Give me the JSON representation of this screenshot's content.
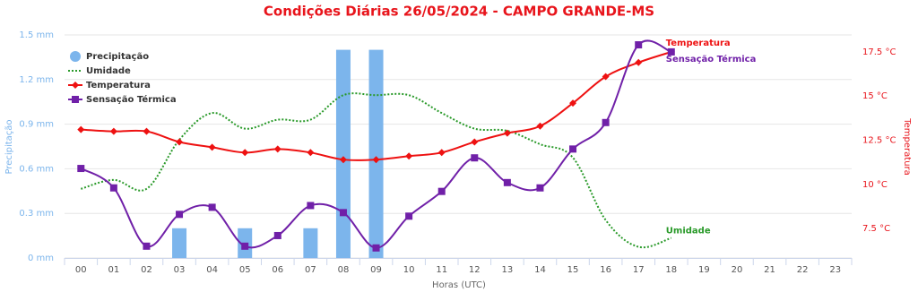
{
  "chart_data": {
    "type": "combo",
    "title": "Condições Diárias 26/05/2024 - CAMPO GRANDE-MS",
    "x_label": "Horas (UTC)",
    "y_label": "Precipitação",
    "y2_label": "Temperatura",
    "categories": [
      "00",
      "01",
      "02",
      "03",
      "04",
      "05",
      "06",
      "07",
      "08",
      "09",
      "10",
      "11",
      "12",
      "13",
      "14",
      "15",
      "16",
      "17",
      "18",
      "19",
      "20",
      "21",
      "22",
      "23"
    ],
    "ylim": [
      0,
      1.5
    ],
    "yticks": [
      {
        "value": 0,
        "label": "0 mm"
      },
      {
        "value": 0.3,
        "label": "0.3 mm"
      },
      {
        "value": 0.6,
        "label": "0.6 mm"
      },
      {
        "value": 0.9,
        "label": "0.9 mm"
      },
      {
        "value": 1.2,
        "label": "1.2 mm"
      },
      {
        "value": 1.5,
        "label": "1.5 mm"
      }
    ],
    "y2lim": [
      5.83,
      18.46
    ],
    "y2ticks": [
      {
        "value": 7.5,
        "label": "7.5 °C"
      },
      {
        "value": 10,
        "label": "10 °C"
      },
      {
        "value": 12.5,
        "label": "12.5 °C"
      },
      {
        "value": 15,
        "label": "15 °C"
      },
      {
        "value": 17.5,
        "label": "17.5 °C"
      }
    ],
    "y3lim": [
      0,
      100
    ],
    "grid": true,
    "legend": "top-left",
    "series": [
      {
        "name": "Precipitação",
        "type": "bar",
        "color": "#7cb5ec",
        "axis": "y",
        "values": [
          0,
          0,
          0,
          0.2,
          0,
          0.2,
          0,
          0.2,
          1.4,
          1.4,
          0,
          0,
          0,
          0,
          0,
          0,
          0,
          0,
          0,
          null,
          null,
          null,
          null,
          null
        ]
      },
      {
        "name": "Umidade",
        "type": "line",
        "color": "#2a9a2a",
        "axis": "y3",
        "dotted": true,
        "values": [
          31,
          35,
          31,
          53,
          65,
          58,
          62,
          62,
          73,
          73,
          73,
          65,
          58,
          57,
          51,
          45,
          17,
          5,
          9,
          null,
          null,
          null,
          null,
          null
        ]
      },
      {
        "name": "Temperatura",
        "type": "line",
        "color": "#ee1111",
        "axis": "y2",
        "marker": "diamond",
        "values": [
          13.1,
          13.0,
          13.0,
          12.4,
          12.1,
          11.8,
          12.0,
          11.8,
          11.4,
          11.4,
          11.6,
          11.8,
          12.4,
          12.9,
          13.3,
          14.6,
          16.1,
          16.9,
          17.5,
          null,
          null,
          null,
          null,
          null
        ]
      },
      {
        "name": "Sensação Térmica",
        "type": "line",
        "color": "#7020a8",
        "axis": "y2",
        "marker": "square",
        "values": [
          10.9,
          9.8,
          6.5,
          8.3,
          8.7,
          6.5,
          7.1,
          8.8,
          8.4,
          6.4,
          8.2,
          9.6,
          11.5,
          10.1,
          9.8,
          12.0,
          13.5,
          17.9,
          17.5,
          null,
          null,
          null,
          null,
          null
        ]
      }
    ]
  }
}
